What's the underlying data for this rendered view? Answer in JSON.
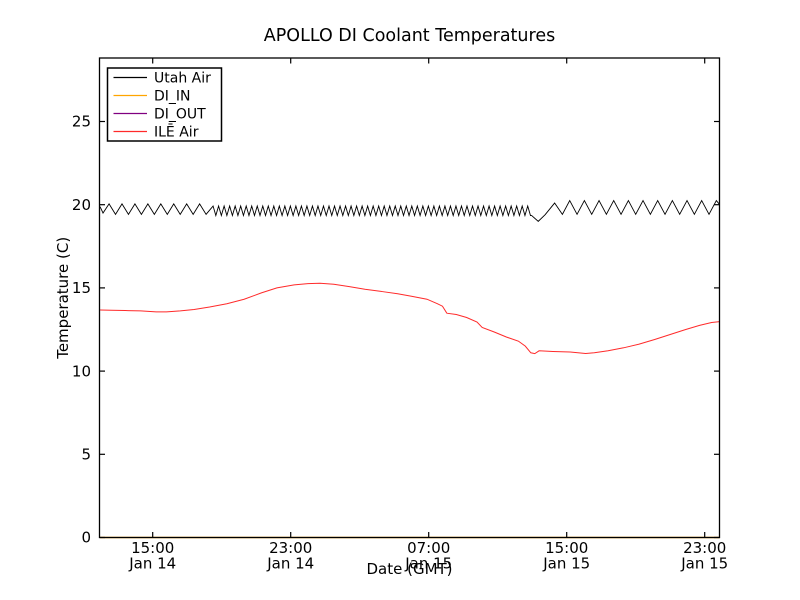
{
  "figure": {
    "background": "#ffffff",
    "axes_edge_color": "#000000"
  },
  "chart_data": {
    "type": "line",
    "title": "APOLLO DI Coolant Temperatures",
    "xlabel": "Date (GMT)",
    "ylabel": "Temperature (C)",
    "x_unit": "hours since Jan 14 00:00 GMT",
    "xlim": [
      11.95,
      47.87
    ],
    "ylim": [
      0,
      28.8
    ],
    "grid": false,
    "x_ticks": [
      {
        "value": 15,
        "time": "15:00",
        "date": "Jan 14"
      },
      {
        "value": 23,
        "time": "23:00",
        "date": "Jan 14"
      },
      {
        "value": 31,
        "time": "07:00",
        "date": "Jan 15"
      },
      {
        "value": 39,
        "time": "15:00",
        "date": "Jan 15"
      },
      {
        "value": 47,
        "time": "23:00",
        "date": "Jan 15"
      }
    ],
    "y_ticks": [
      0,
      5,
      10,
      15,
      20,
      25
    ],
    "legend": {
      "position": "upper-left",
      "border_color": "#000000",
      "background": "#ffffff"
    },
    "series": [
      {
        "name": "Utah Air",
        "color": "#000000",
        "width": 0.9,
        "description": "rapid thermostat-style triangle oscillation around 19.7 C; slow cycles until ~18:20 Jan14, dense ~20-min cycles until ~13:00 Jan15, brief dip to 19.0, then slow cycles again",
        "pieces": [
          {
            "type": "pts",
            "points": [
              [
                11.95,
                19.88
              ],
              [
                12.12,
                19.5
              ]
            ]
          },
          {
            "type": "osc",
            "from": 12.47,
            "to": 18.3,
            "period": 0.75,
            "lo": 19.42,
            "hi": 20.05,
            "first": "hi"
          },
          {
            "type": "osc",
            "from": 18.5,
            "to": 36.97,
            "period": 0.32,
            "lo": 19.35,
            "hi": 19.92,
            "first": "hi"
          },
          {
            "type": "pts",
            "points": [
              [
                36.97,
                19.35
              ],
              [
                37.35,
                19.0
              ],
              [
                37.75,
                19.4
              ],
              [
                38.3,
                20.1
              ]
            ]
          },
          {
            "type": "osc",
            "from": 38.75,
            "to": 47.8,
            "period": 0.85,
            "lo": 19.42,
            "hi": 20.25,
            "first": "lo"
          },
          {
            "type": "pts",
            "points": [
              [
                47.87,
                20.0
              ]
            ]
          }
        ]
      },
      {
        "name": "DI_IN",
        "color": "#ffa500",
        "width": 1.6,
        "description": "flat at 0 C along the bottom axis",
        "points": [
          [
            11.95,
            0
          ],
          [
            47.87,
            0
          ]
        ]
      },
      {
        "name": "DI_OUT",
        "color": "#800080",
        "width": 1.0,
        "description": "flat at 0 C along the bottom axis (overlaps DI_IN)",
        "points": [
          [
            11.95,
            0
          ],
          [
            47.87,
            0
          ]
        ]
      },
      {
        "name": "ILĒ Air",
        "color": "#ff2a2a",
        "width": 1.0,
        "description": "smooth curve: ~13.7 C, peak 15.3 C ~00:40 Jan15, steps down to ~11.1 C by 13:00 Jan15, recovers to ~13.0 C",
        "points": [
          [
            11.95,
            13.67
          ],
          [
            12.6,
            13.66
          ],
          [
            13.4,
            13.64
          ],
          [
            14.3,
            13.62
          ],
          [
            15.2,
            13.56
          ],
          [
            15.8,
            13.56
          ],
          [
            16.6,
            13.62
          ],
          [
            17.4,
            13.7
          ],
          [
            18.3,
            13.85
          ],
          [
            19.3,
            14.05
          ],
          [
            20.3,
            14.32
          ],
          [
            21.3,
            14.7
          ],
          [
            22.2,
            15.0
          ],
          [
            23.2,
            15.18
          ],
          [
            24.0,
            15.26
          ],
          [
            24.7,
            15.28
          ],
          [
            25.5,
            15.22
          ],
          [
            26.4,
            15.08
          ],
          [
            27.3,
            14.92
          ],
          [
            28.3,
            14.78
          ],
          [
            29.2,
            14.65
          ],
          [
            30.0,
            14.5
          ],
          [
            30.9,
            14.32
          ],
          [
            31.5,
            14.05
          ],
          [
            31.8,
            13.9
          ],
          [
            32.05,
            13.48
          ],
          [
            32.6,
            13.4
          ],
          [
            33.2,
            13.22
          ],
          [
            33.8,
            12.95
          ],
          [
            34.1,
            12.62
          ],
          [
            34.8,
            12.35
          ],
          [
            35.5,
            12.05
          ],
          [
            36.2,
            11.8
          ],
          [
            36.6,
            11.5
          ],
          [
            36.92,
            11.1
          ],
          [
            37.15,
            11.05
          ],
          [
            37.4,
            11.22
          ],
          [
            38.2,
            11.18
          ],
          [
            39.2,
            11.15
          ],
          [
            40.1,
            11.06
          ],
          [
            40.6,
            11.1
          ],
          [
            41.4,
            11.22
          ],
          [
            42.3,
            11.4
          ],
          [
            43.2,
            11.62
          ],
          [
            44.1,
            11.9
          ],
          [
            45.0,
            12.2
          ],
          [
            45.9,
            12.5
          ],
          [
            46.7,
            12.75
          ],
          [
            47.4,
            12.92
          ],
          [
            47.87,
            12.97
          ]
        ]
      }
    ]
  }
}
